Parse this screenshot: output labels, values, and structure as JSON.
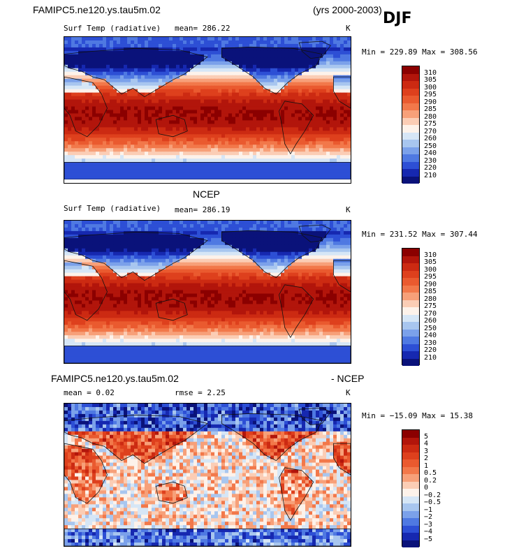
{
  "header": {
    "case_name": "FAMIPC5.ne120.ys.tau5m.02",
    "years": "(yrs 2000-2003)",
    "season": "DJF"
  },
  "panels": [
    {
      "id": "model",
      "section_title": "",
      "var_label": "Surf Temp (radiative)",
      "stat1": "mean= 286.22",
      "stat2": "",
      "units": "K",
      "minmax": "Min = 229.89 Max = 308.56"
    },
    {
      "id": "obs",
      "section_title": "NCEP",
      "var_label": "Surf Temp (radiative)",
      "stat1": "mean= 286.19",
      "stat2": "",
      "units": "K",
      "minmax": "Min = 231.52 Max = 307.44"
    },
    {
      "id": "diff",
      "section_title_left": "FAMIPC5.ne120.ys.tau5m.02",
      "section_title_right": "- NCEP",
      "var_label": "mean =    0.02",
      "stat1": "rmse =    2.25",
      "units": "K",
      "minmax": "Min = −15.09 Max =  15.38"
    }
  ],
  "chart_data": [
    {
      "type": "heatmap",
      "title": "Surf Temp (radiative)",
      "mean": 286.22,
      "min": 229.89,
      "max": 308.56,
      "units": "K",
      "colorbar_levels": [
        310,
        305,
        300,
        295,
        290,
        285,
        280,
        275,
        270,
        260,
        250,
        240,
        230,
        220,
        210
      ],
      "colorbar_labels": [
        "310",
        "305",
        "300",
        "295",
        "290",
        "285",
        "280",
        "275",
        "270",
        "260",
        "250",
        "240",
        "230",
        "220",
        "210"
      ]
    },
    {
      "type": "heatmap",
      "title": "NCEP Surf Temp (radiative)",
      "mean": 286.19,
      "min": 231.52,
      "max": 307.44,
      "units": "K",
      "colorbar_levels": [
        310,
        305,
        300,
        295,
        290,
        285,
        280,
        275,
        270,
        260,
        250,
        240,
        230,
        220,
        210
      ],
      "colorbar_labels": [
        "310",
        "305",
        "300",
        "295",
        "290",
        "285",
        "280",
        "275",
        "270",
        "260",
        "250",
        "240",
        "230",
        "220",
        "210"
      ]
    },
    {
      "type": "heatmap",
      "title": "FAMIPC5.ne120.ys.tau5m.02 - NCEP",
      "mean": 0.02,
      "rmse": 2.25,
      "min": -15.09,
      "max": 15.38,
      "units": "K",
      "colorbar_levels": [
        5,
        4,
        3,
        2,
        1,
        0.5,
        0.2,
        0,
        -0.2,
        -0.5,
        -1,
        -2,
        -3,
        -4,
        -5
      ],
      "colorbar_labels": [
        "5",
        "4",
        "3",
        "2",
        "1",
        "0.5",
        "0.2",
        "0",
        "−0.2",
        "−0.5",
        "−1",
        "−2",
        "−3",
        "−4",
        "−5"
      ]
    }
  ],
  "colors": {
    "ramp": [
      "#8b0000",
      "#b2150b",
      "#cc2a12",
      "#de401d",
      "#ea5a2f",
      "#f2784a",
      "#f7a079",
      "#fbcdb5",
      "#fdf2ea",
      "#d6e6f6",
      "#a8c6ef",
      "#7ba1ea",
      "#4f79e2",
      "#2d4fd5",
      "#1628b0",
      "#0a127a"
    ]
  }
}
